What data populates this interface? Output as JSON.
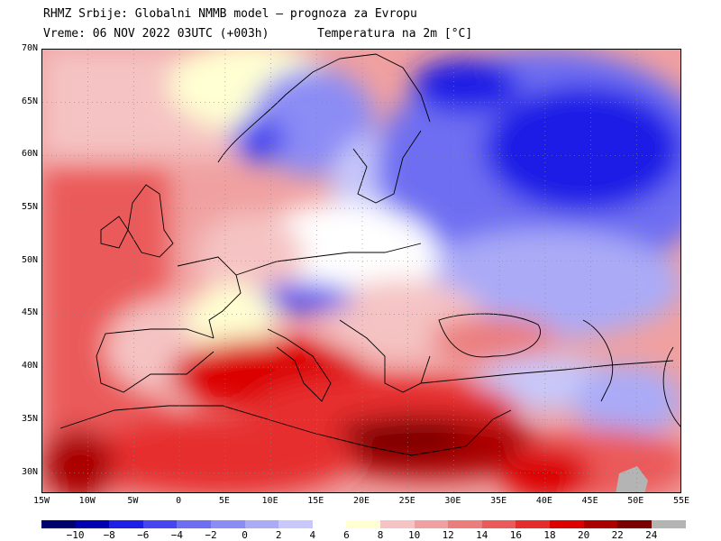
{
  "header": {
    "line1": "RHMZ Srbije: Globalni NMMB model — prognoza za Evropu",
    "line2": "Vreme: 06 NOV 2022 03UTC (+003h)",
    "line3": "Temperatura na 2m [°C]"
  },
  "map": {
    "lat_labels": [
      "70N",
      "65N",
      "60N",
      "55N",
      "50N",
      "45N",
      "40N",
      "35N",
      "30N"
    ],
    "lon_labels": [
      "15W",
      "10W",
      "5W",
      "0",
      "5E",
      "10E",
      "15E",
      "20E",
      "25E",
      "30E",
      "35E",
      "40E",
      "45E",
      "50E",
      "55E"
    ],
    "lat_range": [
      28,
      70
    ],
    "lon_range": [
      -15,
      55
    ]
  },
  "colorbar": {
    "labels": [
      "−10",
      "−8",
      "−6",
      "−4",
      "−2",
      "0",
      "2",
      "4",
      "6",
      "8",
      "10",
      "12",
      "14",
      "16",
      "18",
      "20",
      "22",
      "24"
    ],
    "colors": [
      "#000070",
      "#0000b0",
      "#1e1ee6",
      "#4646f0",
      "#6e6ef2",
      "#8c8cf5",
      "#aaaaf7",
      "#c8c8fa",
      "#ffffff",
      "#ffffd2",
      "#f5c3c3",
      "#f0a0a0",
      "#eb7d7d",
      "#eb5a5a",
      "#e62d2d",
      "#dc0000",
      "#aa0000",
      "#7a0000",
      "#b4b4b4"
    ]
  }
}
